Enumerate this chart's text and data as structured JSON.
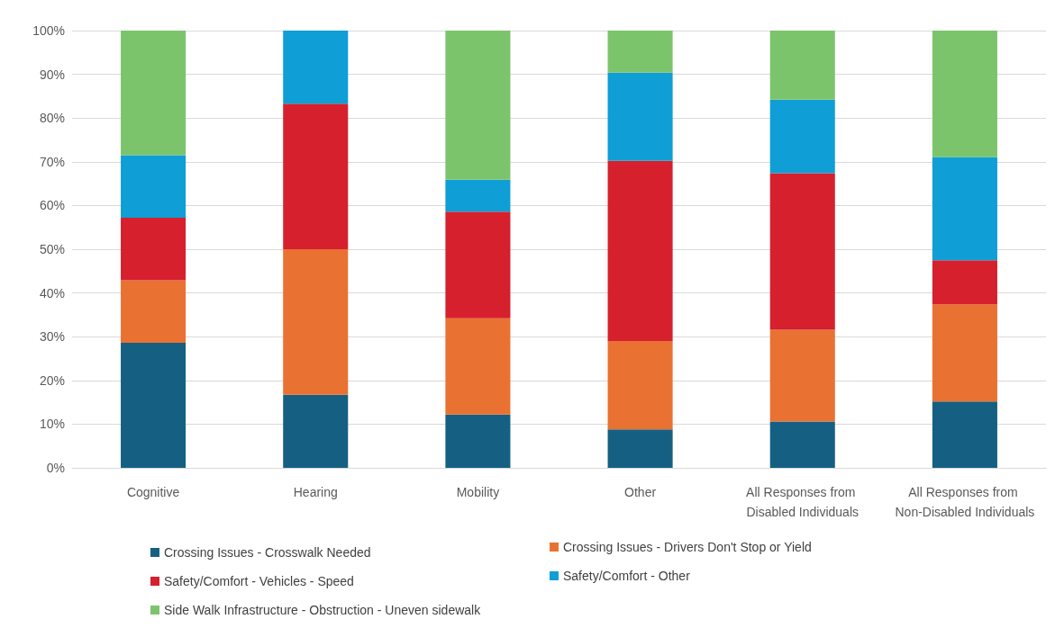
{
  "chart_data": {
    "type": "bar",
    "stacked": true,
    "categories": [
      "Cognitive",
      "Hearing",
      "Mobility",
      "Other",
      "All Responses from Disabled Individuals",
      "All Responses from Non-Disabled Individuals"
    ],
    "series": [
      {
        "name": "Crossing Issues - Crosswalk Needed",
        "color": "#156082",
        "values": [
          28.6,
          16.7,
          12.2,
          8.8,
          10.6,
          15.2
        ]
      },
      {
        "name": "Crossing Issues - Drivers Don't Stop or Yield",
        "color": "#e97132",
        "values": [
          14.3,
          33.3,
          22.0,
          20.2,
          21.0,
          22.2
        ]
      },
      {
        "name": "Safety/Comfort - Vehicles - Speed",
        "color": "#d6202e",
        "values": [
          14.3,
          33.3,
          24.4,
          41.2,
          35.8,
          10.1
        ]
      },
      {
        "name": "Safety/Comfort - Other",
        "color": "#0f9ed5",
        "values": [
          14.3,
          16.7,
          7.3,
          20.2,
          16.8,
          23.6
        ]
      },
      {
        "name": "Side Walk Infrastructure - Obstruction - Uneven sidewalk",
        "color": "#7cc46c",
        "values": [
          28.6,
          0,
          34.1,
          9.6,
          15.8,
          28.9
        ]
      }
    ],
    "ylim": [
      0,
      100
    ],
    "yticks": [
      {
        "value": 0,
        "label": "0%"
      },
      {
        "value": 10,
        "label": "10%"
      },
      {
        "value": 20,
        "label": "20%"
      },
      {
        "value": 30,
        "label": "30%"
      },
      {
        "value": 40,
        "label": "40%"
      },
      {
        "value": 50,
        "label": "50%"
      },
      {
        "value": 60,
        "label": "60%"
      },
      {
        "value": 70,
        "label": "70%"
      },
      {
        "value": 80,
        "label": "80%"
      },
      {
        "value": 90,
        "label": "90%"
      },
      {
        "value": 100,
        "label": "100%"
      }
    ],
    "grid": "y",
    "legend": "bottom"
  }
}
